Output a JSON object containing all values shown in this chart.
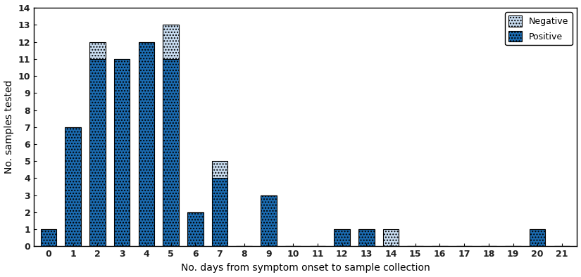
{
  "days": [
    0,
    1,
    2,
    3,
    4,
    5,
    6,
    7,
    8,
    9,
    10,
    11,
    12,
    13,
    14,
    15,
    16,
    17,
    18,
    19,
    20,
    21
  ],
  "positive": [
    1,
    7,
    11,
    11,
    12,
    11,
    2,
    4,
    0,
    3,
    0,
    0,
    1,
    1,
    0,
    0,
    0,
    0,
    0,
    0,
    1,
    0
  ],
  "negative": [
    0,
    0,
    1,
    0,
    0,
    2,
    0,
    1,
    0,
    0,
    0,
    0,
    0,
    0,
    1,
    0,
    0,
    0,
    0,
    0,
    0,
    0
  ],
  "positive_color": "#1B6BB0",
  "negative_color": "#C8DCF0",
  "xlabel": "No. days from symptom onset to sample collection",
  "ylabel": "No. samples tested",
  "ylim": [
    0,
    14
  ],
  "xlim": [
    -0.6,
    21.6
  ],
  "yticks": [
    0,
    1,
    2,
    3,
    4,
    5,
    6,
    7,
    8,
    9,
    10,
    11,
    12,
    13,
    14
  ],
  "xticks": [
    0,
    1,
    2,
    3,
    4,
    5,
    6,
    7,
    8,
    9,
    10,
    11,
    12,
    13,
    14,
    15,
    16,
    17,
    18,
    19,
    20,
    21
  ],
  "legend_negative": "Negative",
  "legend_positive": "Positive",
  "bar_width": 0.65,
  "figsize": [
    8.25,
    3.94
  ],
  "dpi": 100
}
